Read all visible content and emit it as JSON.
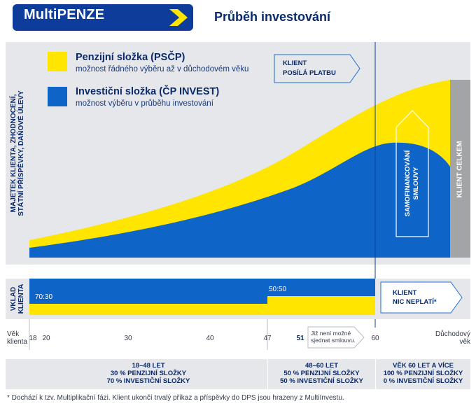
{
  "header": {
    "logo_text": "MultiPENZE",
    "title": "Průběh investování"
  },
  "chart": {
    "y_axis_label": [
      "MAJETEK KLIENTA, ZHODNOCENÍ,",
      "STÁTNÍ PŘÍSPĚVKY, DAŇOVÉ ÚLEVY"
    ],
    "legend": [
      {
        "title": "Penzijní složka (PSČP)",
        "desc": "možnost řádného výběru až v důchodovém věku",
        "color": "#ffe500"
      },
      {
        "title": "Investiční složka (ČP INVEST)",
        "desc": "možnost výběru v průběhu investování",
        "color": "#0f64c8"
      }
    ],
    "callout_pays": [
      "KLIENT",
      "POSÍLÁ PLATBU"
    ],
    "self_financing": [
      "SAMOFINANCOVÁNÍ",
      "SMLOUVY"
    ],
    "client_total": "KLIENT CELKEM"
  },
  "contribution": {
    "label": [
      "VKLAD",
      "KLIENTA"
    ],
    "ratio_early": "70:30",
    "ratio_late": "50:50",
    "callout_no_pay": [
      "KLIENT",
      "NIC NEPLATÍ*"
    ]
  },
  "age_axis": {
    "left_label": [
      "Věk",
      "klienta"
    ],
    "ticks": [
      "18",
      "20",
      "30",
      "40",
      "47",
      "51",
      "60"
    ],
    "right_label": [
      "Důchodový",
      "věk"
    ],
    "note": [
      "Již není možné",
      "sjednat smlouvu."
    ]
  },
  "phases": [
    {
      "lines": [
        "18–48 LET",
        "30 % PENZIJNÍ SLOŽKY",
        "70 % INVESTIČNÍ SLOŽKY"
      ]
    },
    {
      "lines": [
        "48–60 LET",
        "50 % PENZIJNÍ SLOŽKY",
        "50 % INVESTIČNÍ SLOŽKY"
      ]
    },
    {
      "lines": [
        "VĚK 60 LET A VÍCE",
        "100 % PENZIJNÍ SLOŽKY",
        "0 % INVESTIČNÍ SLOŽKY"
      ]
    }
  ],
  "footnote": "* Dochází k tzv. Multiplikační fázi. Klient ukončí trvalý příkaz a příspěvky do DPS jsou hrazeny z MultiInvestu.",
  "colors": {
    "navy": "#0d3c9a",
    "yellow": "#ffe500",
    "blue": "#0f64c8",
    "gray_panel": "#a3a4a6",
    "background": "#e6e7ea"
  }
}
